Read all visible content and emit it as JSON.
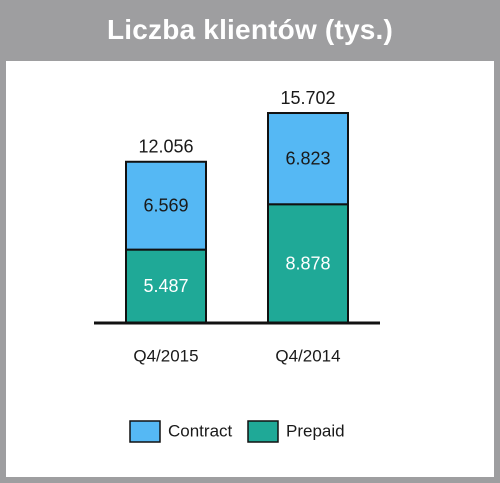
{
  "title": "Liczba klientów (tys.)",
  "colors": {
    "frame": "#9e9ea0",
    "contract": "#55b8f4",
    "prepaid": "#1fa997",
    "outline": "#111111"
  },
  "chart_data": {
    "type": "bar",
    "stacked": true,
    "categories": [
      "Q4/2015",
      "Q4/2014"
    ],
    "series": [
      {
        "name": "Prepaid",
        "values": [
          5.487,
          8.878
        ],
        "labels": [
          "5.487",
          "8.878"
        ],
        "color": "#1fa997",
        "label_color": "#ffffff"
      },
      {
        "name": "Contract",
        "values": [
          6.569,
          6.823
        ],
        "labels": [
          "6.569",
          "6.823"
        ],
        "color": "#55b8f4",
        "label_color": "#1a1a1a"
      }
    ],
    "totals": [
      12.056,
      15.702
    ],
    "total_labels": [
      "12.056",
      "15.702"
    ],
    "title": "Liczba klientów (tys.)",
    "xlabel": "",
    "ylabel": "",
    "ylim": [
      0,
      15.702
    ],
    "grid": false,
    "legend": {
      "position": "bottom-center",
      "entries": [
        "Contract",
        "Prepaid"
      ]
    }
  }
}
